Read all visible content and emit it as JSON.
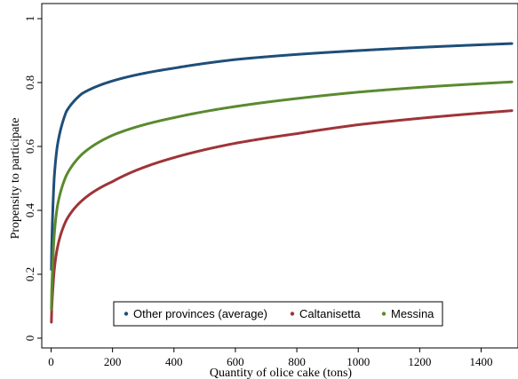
{
  "chart_data": {
    "type": "line",
    "title": "",
    "xlabel": "Quantity of olice cake (tons)",
    "ylabel": "Propensity to participate",
    "xlim": [
      0,
      1500
    ],
    "ylim": [
      0,
      1
    ],
    "x_ticks": [
      0,
      200,
      400,
      600,
      800,
      1000,
      1200,
      1400
    ],
    "y_ticks": [
      0,
      0.2,
      0.4,
      0.6,
      0.8,
      1
    ],
    "grid": false,
    "legend_position": "bottom-inside",
    "x": [
      1,
      5,
      10,
      20,
      50,
      100,
      200,
      400,
      600,
      800,
      1000,
      1200,
      1500
    ],
    "series": [
      {
        "name": "Other provinces (average)",
        "color": "#1f4e79",
        "values": [
          0.215,
          0.38,
          0.5,
          0.6,
          0.71,
          0.765,
          0.805,
          0.845,
          0.872,
          0.888,
          0.9,
          0.91,
          0.922
        ]
      },
      {
        "name": "Caltanisetta",
        "color": "#9e3438",
        "values": [
          0.05,
          0.14,
          0.21,
          0.28,
          0.37,
          0.43,
          0.49,
          0.565,
          0.61,
          0.64,
          0.668,
          0.688,
          0.712
        ]
      },
      {
        "name": "Messina",
        "color": "#5a8a2e",
        "values": [
          0.09,
          0.22,
          0.32,
          0.41,
          0.51,
          0.575,
          0.635,
          0.69,
          0.725,
          0.75,
          0.77,
          0.785,
          0.802
        ]
      }
    ]
  }
}
